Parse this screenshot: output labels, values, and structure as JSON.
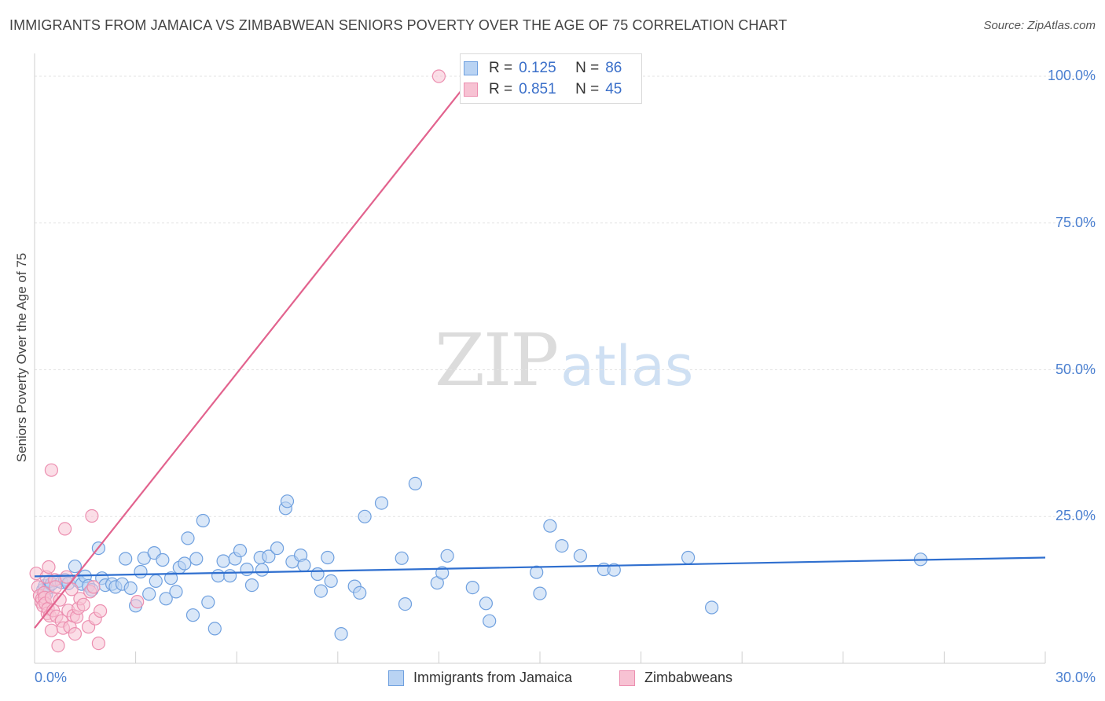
{
  "header": {
    "title": "IMMIGRANTS FROM JAMAICA VS ZIMBABWEAN SENIORS POVERTY OVER THE AGE OF 75 CORRELATION CHART",
    "source": "Source: ZipAtlas.com"
  },
  "watermark": {
    "zip": "ZIP",
    "atlas": "atlas"
  },
  "legend": {
    "r_label": "R =",
    "n_label": "N =",
    "series": [
      {
        "name": "Immigrants from Jamaica",
        "r": "0.125",
        "n": "86",
        "color": "#4a90e2"
      },
      {
        "name": "Zimbabweans",
        "r": "0.851",
        "n": "45",
        "color": "#e8739b"
      }
    ]
  },
  "colors": {
    "blue_fill": "#b9d3f3",
    "blue_stroke": "#6fa0df",
    "blue_line": "#2f6fcf",
    "pink_fill": "#f7c2d3",
    "pink_stroke": "#ec8fb0",
    "pink_line": "#e2638e",
    "tick_text": "#4a7fd0",
    "grid": "#e3e3e3"
  },
  "chart_data": {
    "type": "scatter",
    "title": "IMMIGRANTS FROM JAMAICA VS ZIMBABWEAN SENIORS POVERTY OVER THE AGE OF 75 CORRELATION CHART",
    "xlabel": "",
    "ylabel": "Seniors Poverty Over the Age of 75",
    "xlim": [
      0,
      30
    ],
    "ylim": [
      0,
      102
    ],
    "x_tick_labels": [
      "0.0%",
      "30.0%"
    ],
    "y_ticks": [
      25,
      50,
      75,
      100
    ],
    "y_tick_labels": [
      "25.0%",
      "50.0%",
      "75.0%",
      "100.0%"
    ],
    "grid": true,
    "series": [
      {
        "name": "Immigrants from Jamaica",
        "r": 0.125,
        "n": 86,
        "trendline": {
          "x": [
            0,
            30
          ],
          "y": [
            14.8,
            18.0
          ]
        },
        "points": [
          [
            0.25,
            12.5
          ],
          [
            0.3,
            13.2
          ],
          [
            0.35,
            11.8
          ],
          [
            0.4,
            12.8
          ],
          [
            0.45,
            14.0
          ],
          [
            0.5,
            13.5
          ],
          [
            0.7,
            14.0
          ],
          [
            0.8,
            13.8
          ],
          [
            0.9,
            14.2
          ],
          [
            1.0,
            13.6
          ],
          [
            1.2,
            16.5
          ],
          [
            1.3,
            14.0
          ],
          [
            1.4,
            13.5
          ],
          [
            1.5,
            14.8
          ],
          [
            1.6,
            13.2
          ],
          [
            1.7,
            12.5
          ],
          [
            1.9,
            19.6
          ],
          [
            2.0,
            14.5
          ],
          [
            2.1,
            13.3
          ],
          [
            2.3,
            13.5
          ],
          [
            2.4,
            13.0
          ],
          [
            2.6,
            13.5
          ],
          [
            2.7,
            17.8
          ],
          [
            2.85,
            12.8
          ],
          [
            3.0,
            9.8
          ],
          [
            3.15,
            15.6
          ],
          [
            3.25,
            17.9
          ],
          [
            3.4,
            11.8
          ],
          [
            3.55,
            18.8
          ],
          [
            3.6,
            14.0
          ],
          [
            3.8,
            17.6
          ],
          [
            3.9,
            11.0
          ],
          [
            4.05,
            14.5
          ],
          [
            4.2,
            12.2
          ],
          [
            4.3,
            16.3
          ],
          [
            4.45,
            17.0
          ],
          [
            4.55,
            21.3
          ],
          [
            4.7,
            8.2
          ],
          [
            4.8,
            17.8
          ],
          [
            5.0,
            24.3
          ],
          [
            5.15,
            10.4
          ],
          [
            5.35,
            5.9
          ],
          [
            5.45,
            14.9
          ],
          [
            5.6,
            17.4
          ],
          [
            5.8,
            14.9
          ],
          [
            5.95,
            17.8
          ],
          [
            6.1,
            19.2
          ],
          [
            6.3,
            16.0
          ],
          [
            6.45,
            13.3
          ],
          [
            6.7,
            18.0
          ],
          [
            6.75,
            15.9
          ],
          [
            6.95,
            18.2
          ],
          [
            7.2,
            19.6
          ],
          [
            7.45,
            26.4
          ],
          [
            7.5,
            27.6
          ],
          [
            7.65,
            17.3
          ],
          [
            7.9,
            18.4
          ],
          [
            8.0,
            16.7
          ],
          [
            8.4,
            15.2
          ],
          [
            8.5,
            12.3
          ],
          [
            8.7,
            18.0
          ],
          [
            8.8,
            14.0
          ],
          [
            9.1,
            5.0
          ],
          [
            9.5,
            13.1
          ],
          [
            9.65,
            12.0
          ],
          [
            9.8,
            25.0
          ],
          [
            10.3,
            27.3
          ],
          [
            10.9,
            17.9
          ],
          [
            11.0,
            10.1
          ],
          [
            11.3,
            30.6
          ],
          [
            11.95,
            13.7
          ],
          [
            12.1,
            15.4
          ],
          [
            12.25,
            18.3
          ],
          [
            13.0,
            12.9
          ],
          [
            13.4,
            10.2
          ],
          [
            13.5,
            7.2
          ],
          [
            14.9,
            15.5
          ],
          [
            15.0,
            11.9
          ],
          [
            15.3,
            23.4
          ],
          [
            15.65,
            20.0
          ],
          [
            16.2,
            18.3
          ],
          [
            16.9,
            16.0
          ],
          [
            17.2,
            15.9
          ],
          [
            19.4,
            18.0
          ],
          [
            20.1,
            9.5
          ],
          [
            26.3,
            17.7
          ]
        ]
      },
      {
        "name": "Zimbabweans",
        "r": 0.851,
        "n": 45,
        "trendline": {
          "x": [
            0,
            13.0
          ],
          "y": [
            6.0,
            100.0
          ]
        },
        "points": [
          [
            0.05,
            15.3
          ],
          [
            0.1,
            13.0
          ],
          [
            0.15,
            11.5
          ],
          [
            0.2,
            10.4
          ],
          [
            0.22,
            11.0
          ],
          [
            0.25,
            9.8
          ],
          [
            0.28,
            12.0
          ],
          [
            0.3,
            11.2
          ],
          [
            0.32,
            10.2
          ],
          [
            0.35,
            14.7
          ],
          [
            0.38,
            8.5
          ],
          [
            0.4,
            9.3
          ],
          [
            0.42,
            16.4
          ],
          [
            0.45,
            8.1
          ],
          [
            0.5,
            5.6
          ],
          [
            0.5,
            11.2
          ],
          [
            0.55,
            9.0
          ],
          [
            0.6,
            14.2
          ],
          [
            0.62,
            13.0
          ],
          [
            0.65,
            8.0
          ],
          [
            0.7,
            3.0
          ],
          [
            0.75,
            10.8
          ],
          [
            0.8,
            7.2
          ],
          [
            0.85,
            6.0
          ],
          [
            0.9,
            22.9
          ],
          [
            0.95,
            14.7
          ],
          [
            1.0,
            9.0
          ],
          [
            1.05,
            6.2
          ],
          [
            1.1,
            12.6
          ],
          [
            1.15,
            8.1
          ],
          [
            1.2,
            5.0
          ],
          [
            1.25,
            7.9
          ],
          [
            1.3,
            9.4
          ],
          [
            1.35,
            11.0
          ],
          [
            1.45,
            10.0
          ],
          [
            1.6,
            6.2
          ],
          [
            1.65,
            12.2
          ],
          [
            1.7,
            25.1
          ],
          [
            1.75,
            13.0
          ],
          [
            1.8,
            7.6
          ],
          [
            1.9,
            3.4
          ],
          [
            1.95,
            8.9
          ],
          [
            0.5,
            32.9
          ],
          [
            3.05,
            10.5
          ],
          [
            12.0,
            100.0
          ]
        ]
      }
    ]
  }
}
